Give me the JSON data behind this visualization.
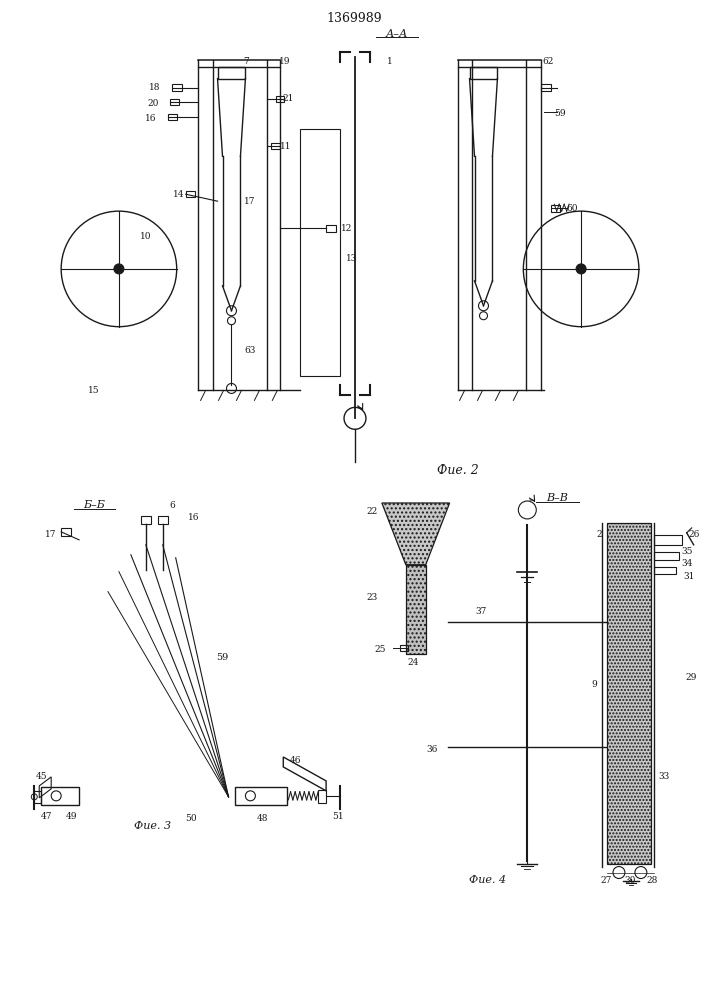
{
  "patent_number": "1369989",
  "background_color": "#ffffff",
  "line_color": "#1a1a1a",
  "fig2_caption": "Фие. 2",
  "fig3_caption": "Фие. 3",
  "fig4_caption": "Фие. 4"
}
